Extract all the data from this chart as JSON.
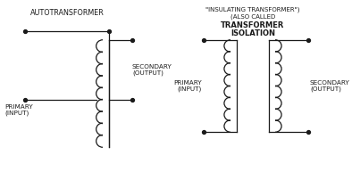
{
  "bg_color": "#ffffff",
  "line_color": "#1a1a1a",
  "fig_width": 3.94,
  "fig_height": 1.93,
  "dpi": 100,
  "labels": {
    "auto_primary": "PRIMARY\n(INPUT)",
    "auto_secondary": "SECONDARY\n(OUTPUT)",
    "auto_name": "AUTOTRANSFORMER",
    "iso_primary": "PRIMARY\n(INPUT)",
    "iso_secondary": "SECONDARY\n(OUTPUT)",
    "iso_name_line1": "ISOLATION",
    "iso_name_line2": "TRANSFORMER",
    "iso_name_line3": "(ALSO CALLED",
    "iso_name_line4": "\"INSULATING TRANSFORMER\")"
  }
}
